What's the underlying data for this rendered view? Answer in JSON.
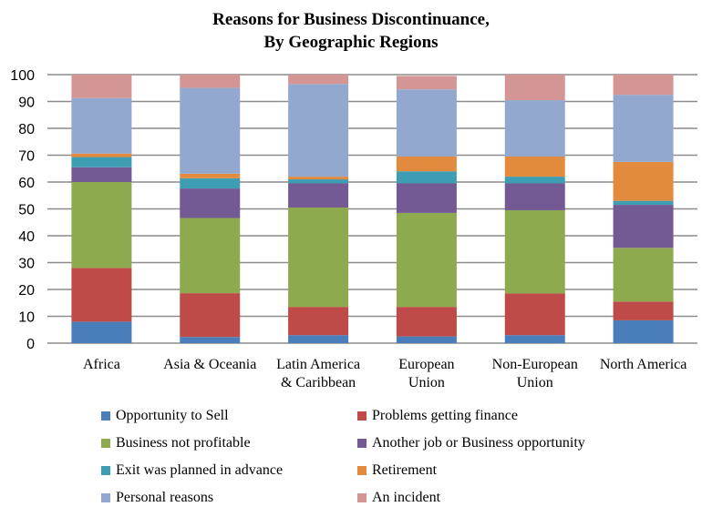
{
  "chart_data": {
    "type": "bar",
    "stacked": true,
    "title": [
      "Reasons for Business Discontinuance,",
      "By Geographic Regions"
    ],
    "xlabel": "",
    "ylabel": "",
    "ylim": [
      0,
      100
    ],
    "yticks": [
      0,
      10,
      20,
      30,
      40,
      50,
      60,
      70,
      80,
      90,
      100
    ],
    "grid": true,
    "legend_position": "bottom",
    "categories": [
      [
        "Africa"
      ],
      [
        "Asia & Oceania"
      ],
      [
        "Latin America",
        "& Caribbean"
      ],
      [
        "European",
        "Union"
      ],
      [
        "Non-European",
        "Union"
      ],
      [
        "North America"
      ]
    ],
    "series": [
      {
        "name": "Opportunity to Sell",
        "color": "#4a7ebb",
        "values": [
          8,
          2.3,
          3,
          2.5,
          3,
          8.5
        ]
      },
      {
        "name": "Problems getting finance",
        "color": "#be4b48",
        "values": [
          20,
          16.3,
          10.5,
          11,
          15.5,
          7
        ]
      },
      {
        "name": "Business not profitable",
        "color": "#8eaa4f",
        "values": [
          32,
          28,
          37,
          35,
          31,
          20
        ]
      },
      {
        "name": "Another job or Business opportunity",
        "color": "#745a94",
        "values": [
          5.5,
          11,
          9,
          11,
          10,
          16
        ]
      },
      {
        "name": "Exit was planned in advance",
        "color": "#3e9cb3",
        "values": [
          3.8,
          3.8,
          1.5,
          4.5,
          2.5,
          1.5
        ]
      },
      {
        "name": "Retirement",
        "color": "#e28a3d",
        "values": [
          1.3,
          1.7,
          1,
          5.5,
          7.5,
          14.5
        ]
      },
      {
        "name": "Personal reasons",
        "color": "#92a8cf",
        "values": [
          20.7,
          32,
          34.5,
          25,
          21,
          25
        ]
      },
      {
        "name": "An incident",
        "color": "#d49694",
        "values": [
          8.7,
          4.9,
          3.5,
          5,
          9.5,
          7.5
        ]
      }
    ]
  }
}
